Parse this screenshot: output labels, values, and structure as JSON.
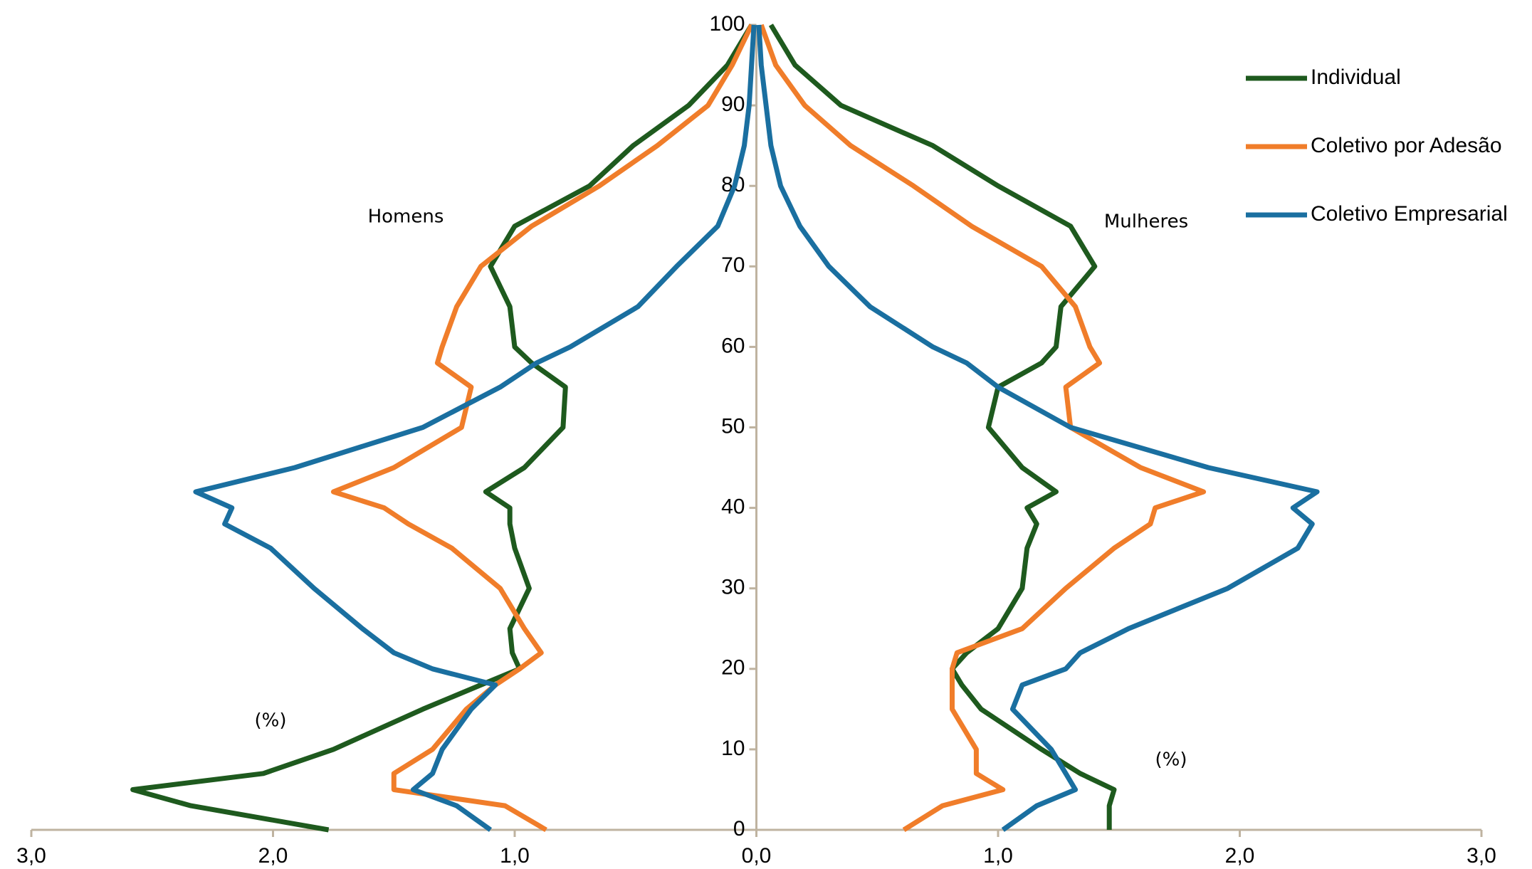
{
  "chart_data": {
    "type": "line",
    "y": [
      0,
      3,
      5,
      7,
      10,
      15,
      18,
      20,
      22,
      25,
      30,
      35,
      38,
      40,
      42,
      45,
      50,
      55,
      58,
      60,
      65,
      70,
      75,
      80,
      85,
      90,
      95,
      100
    ],
    "ylim": [
      0,
      100
    ],
    "yticks": [
      0,
      10,
      20,
      30,
      40,
      50,
      60,
      70,
      80,
      90,
      100
    ],
    "xlim": [
      -3,
      3
    ],
    "xticks": [
      {
        "value": -3,
        "label": "3,0"
      },
      {
        "value": -2,
        "label": "2,0"
      },
      {
        "value": -1,
        "label": "1,0"
      },
      {
        "value": 0,
        "label": "0,0"
      },
      {
        "value": 1,
        "label": "1,0"
      },
      {
        "value": 2,
        "label": "2,0"
      },
      {
        "value": 3,
        "label": "3,0"
      }
    ],
    "annotations": [
      "Homens",
      "Mulheres",
      "(%)",
      "(%)"
    ],
    "legend": "upper right",
    "series": [
      {
        "name": "Individual",
        "color": "#1e5a1e",
        "male_values": [
          -1.77,
          -2.34,
          -2.58,
          -2.04,
          -1.75,
          -1.38,
          -1.14,
          -0.98,
          -1.01,
          -1.02,
          -0.94,
          -1.0,
          -1.02,
          -1.02,
          -1.12,
          -0.96,
          -0.8,
          -0.79,
          -0.93,
          -1.0,
          -1.02,
          -1.1,
          -1.0,
          -0.69,
          -0.51,
          -0.28,
          -0.12,
          -0.02
        ],
        "female_values": [
          1.46,
          1.46,
          1.48,
          1.34,
          1.18,
          0.93,
          0.85,
          0.81,
          0.87,
          1.0,
          1.1,
          1.12,
          1.16,
          1.12,
          1.24,
          1.1,
          0.96,
          1.0,
          1.18,
          1.24,
          1.26,
          1.4,
          1.3,
          1.0,
          0.73,
          0.35,
          0.16,
          0.06
        ]
      },
      {
        "name": "Coletivo por Adesão",
        "color": "#f07d2a",
        "male_values": [
          -0.87,
          -1.04,
          -1.5,
          -1.5,
          -1.34,
          -1.2,
          -1.08,
          -0.98,
          -0.89,
          -0.96,
          -1.06,
          -1.26,
          -1.44,
          -1.54,
          -1.75,
          -1.5,
          -1.22,
          -1.18,
          -1.32,
          -1.3,
          -1.24,
          -1.14,
          -0.93,
          -0.65,
          -0.41,
          -0.2,
          -0.1,
          -0.02
        ],
        "female_values": [
          0.61,
          0.77,
          1.02,
          0.91,
          0.91,
          0.81,
          0.81,
          0.81,
          0.83,
          1.1,
          1.28,
          1.48,
          1.63,
          1.65,
          1.85,
          1.59,
          1.3,
          1.28,
          1.42,
          1.38,
          1.32,
          1.18,
          0.89,
          0.65,
          0.39,
          0.2,
          0.08,
          0.02
        ]
      },
      {
        "name": "Coletivo Empresarial",
        "color": "#1a6fa0",
        "male_values": [
          -1.1,
          -1.24,
          -1.42,
          -1.34,
          -1.3,
          -1.18,
          -1.08,
          -1.34,
          -1.5,
          -1.63,
          -1.83,
          -2.01,
          -2.2,
          -2.17,
          -2.32,
          -1.91,
          -1.38,
          -1.06,
          -0.91,
          -0.77,
          -0.49,
          -0.33,
          -0.16,
          -0.09,
          -0.05,
          -0.03,
          -0.02,
          -0.01
        ],
        "female_values": [
          1.02,
          1.16,
          1.32,
          1.28,
          1.22,
          1.06,
          1.1,
          1.28,
          1.34,
          1.54,
          1.95,
          2.24,
          2.3,
          2.22,
          2.32,
          1.87,
          1.3,
          1.0,
          0.87,
          0.73,
          0.47,
          0.3,
          0.18,
          0.1,
          0.06,
          0.04,
          0.02,
          0.01
        ]
      }
    ]
  }
}
